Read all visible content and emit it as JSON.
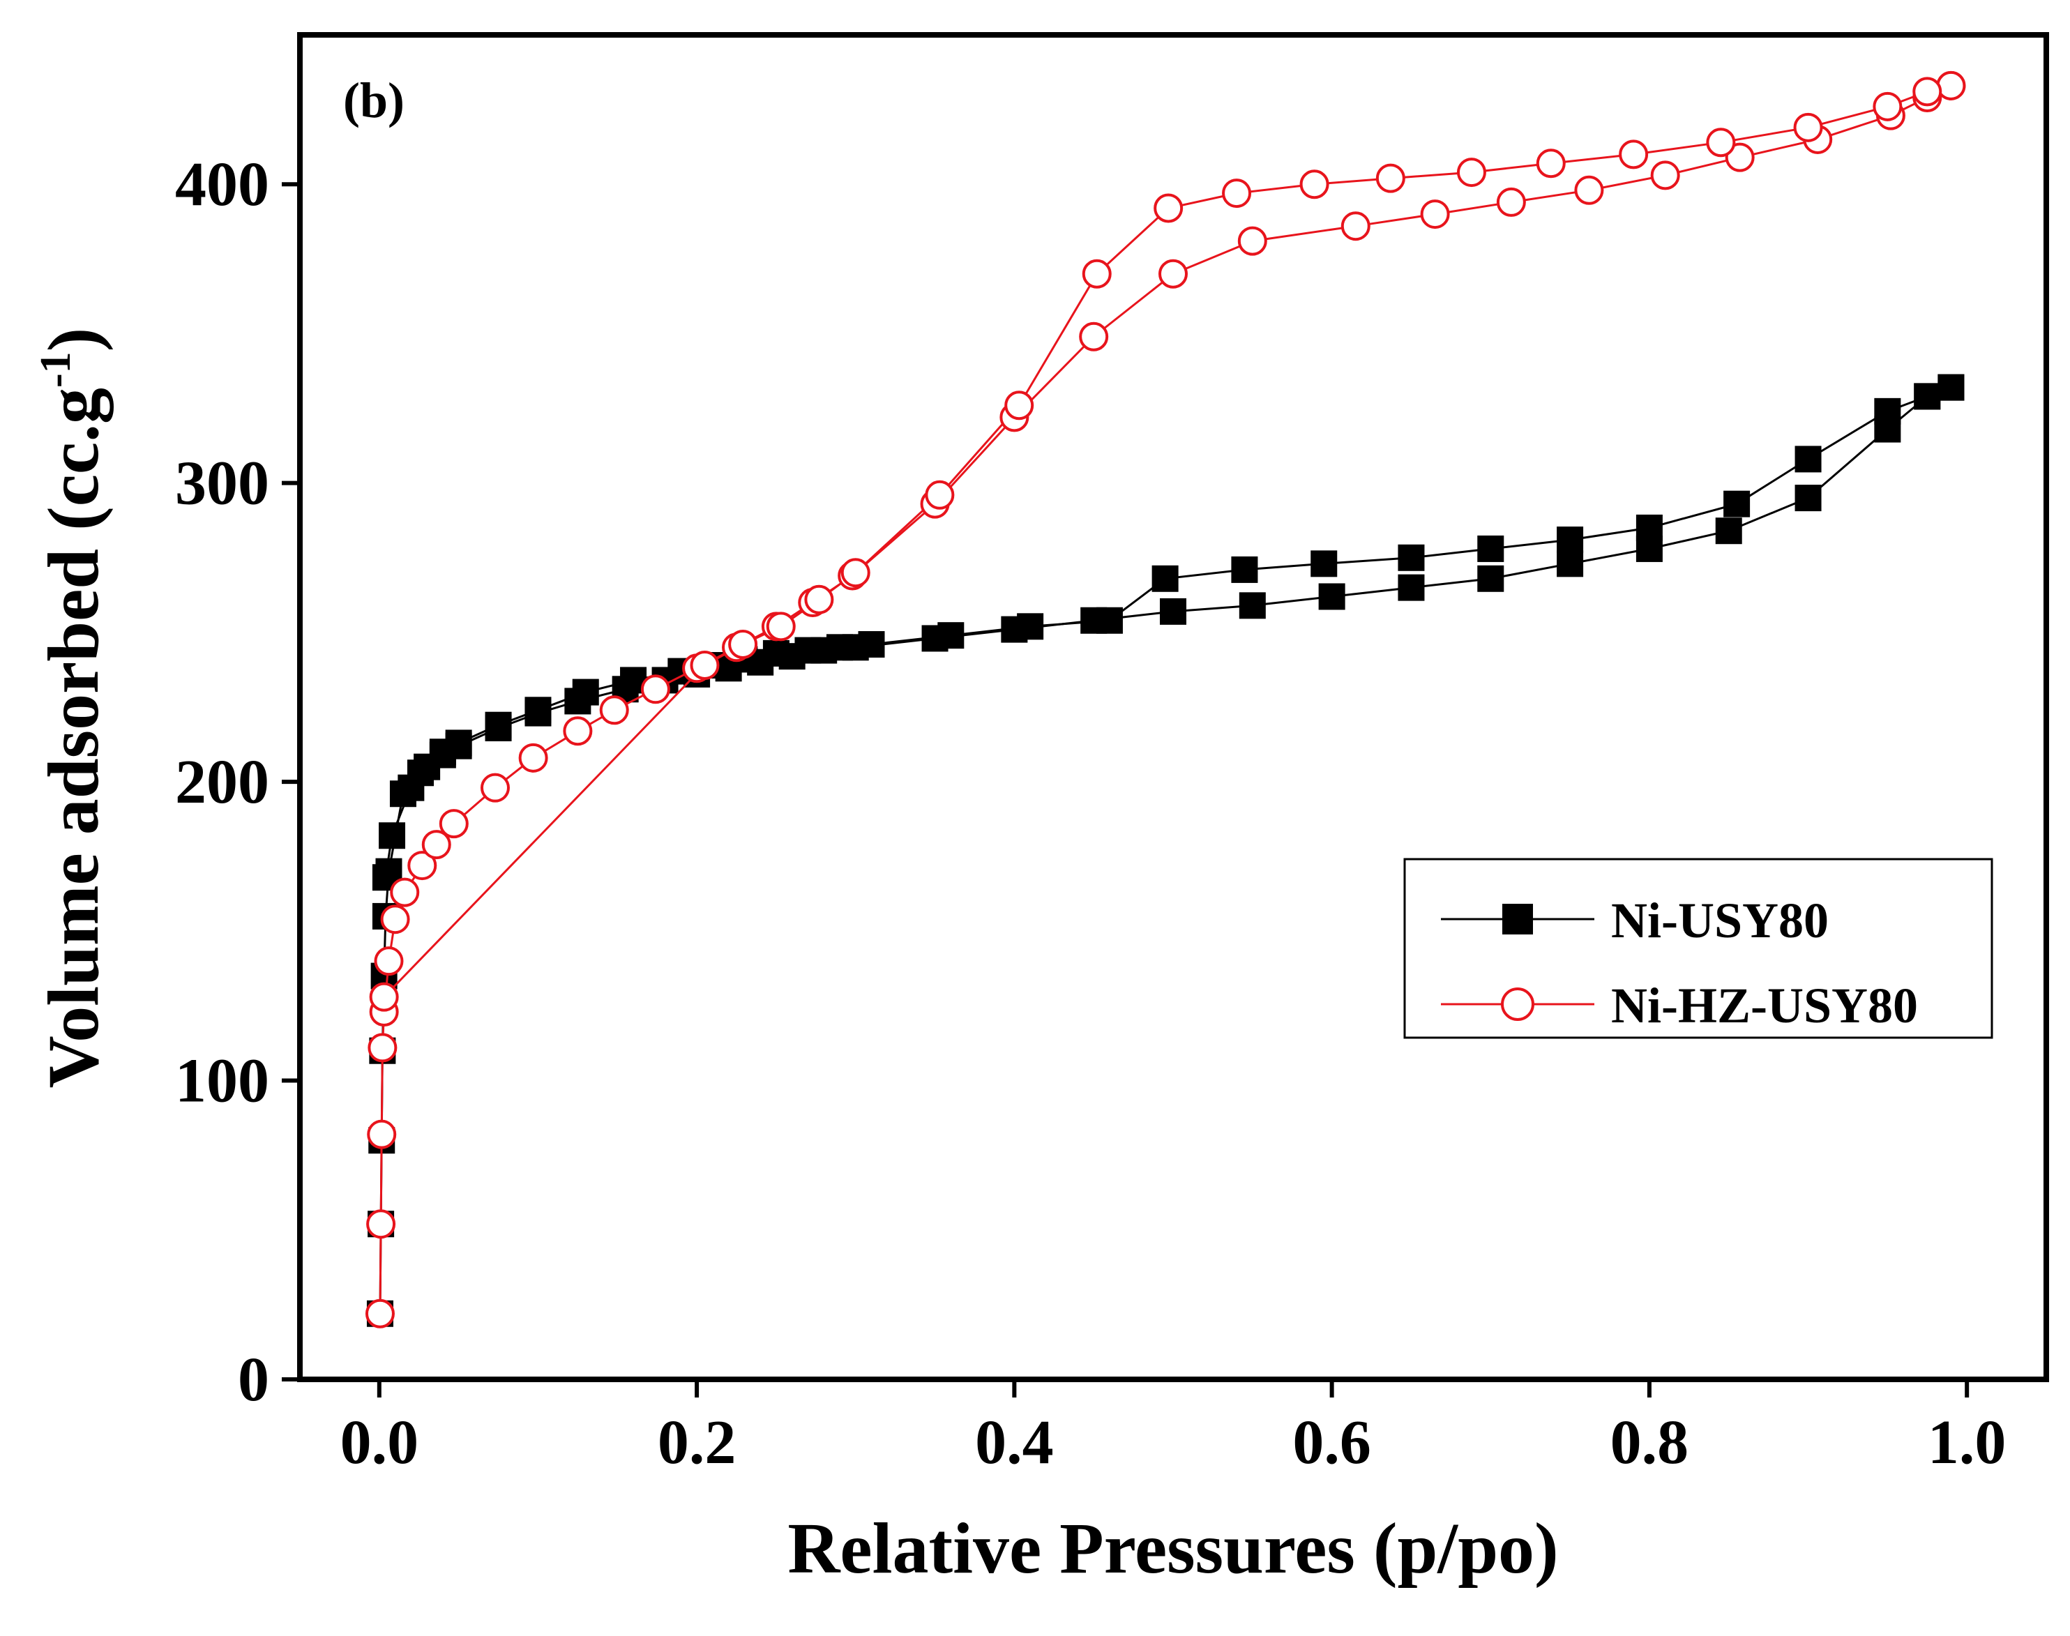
{
  "chart_data": {
    "type": "line",
    "panel_label": "(b)",
    "xlabel": "Relative Pressures (p/po)",
    "ylabel": "Volume adsorbed (cc.g",
    "ylabel_sup": "-1",
    "ylabel_close": ")",
    "xlim": [
      -0.05,
      1.05
    ],
    "ylim": [
      0,
      450
    ],
    "xticks": [
      0.0,
      0.2,
      0.4,
      0.6,
      0.8,
      1.0
    ],
    "xtick_labels": [
      "0.0",
      "0.2",
      "0.4",
      "0.6",
      "0.8",
      "1.0"
    ],
    "yticks": [
      0,
      100,
      200,
      300,
      400
    ],
    "ytick_labels": [
      "0",
      "100",
      "200",
      "300",
      "400"
    ],
    "legend_position": "center-right",
    "series": [
      {
        "name": "Ni-USY80",
        "color": "#000000",
        "marker": "filled-square",
        "adsorption": {
          "x": [
            0.0005,
            0.001,
            0.0015,
            0.002,
            0.003,
            0.004,
            0.006,
            0.015,
            0.026,
            0.04,
            0.05,
            0.075,
            0.1,
            0.125,
            0.155,
            0.18,
            0.2,
            0.22,
            0.24,
            0.26,
            0.28,
            0.3,
            0.35,
            0.4,
            0.45,
            0.5,
            0.55,
            0.6,
            0.65,
            0.7,
            0.75,
            0.8,
            0.85,
            0.9,
            0.95,
            0.975,
            0.99
          ],
          "y": [
            22,
            52,
            80,
            110,
            135,
            155,
            170,
            196,
            203,
            209,
            212,
            218,
            223,
            227,
            231,
            234,
            236,
            238,
            240,
            242,
            244,
            245,
            248,
            251,
            254,
            257,
            259,
            262,
            265,
            268,
            273,
            278,
            284,
            295,
            318,
            329,
            332
          ]
        },
        "desorption": {
          "x": [
            0.99,
            0.975,
            0.95,
            0.9,
            0.855,
            0.8,
            0.75,
            0.7,
            0.65,
            0.595,
            0.545,
            0.495,
            0.46,
            0.41,
            0.36,
            0.31,
            0.29,
            0.27,
            0.25,
            0.23,
            0.21,
            0.19,
            0.16,
            0.13,
            0.1,
            0.075,
            0.05,
            0.04,
            0.03,
            0.02,
            0.008,
            0.004
          ],
          "y": [
            332,
            329,
            324,
            308,
            293,
            285,
            281,
            278,
            275,
            273,
            271,
            268,
            254,
            252,
            249,
            246,
            245,
            244,
            243,
            241,
            239,
            237,
            234,
            230,
            224,
            219,
            213,
            210,
            205,
            198,
            182,
            168
          ]
        }
      },
      {
        "name": "Ni-HZ-USY80",
        "color": "#e8141c",
        "marker": "open-circle",
        "adsorption": {
          "x": [
            0.0005,
            0.001,
            0.0015,
            0.002,
            0.003,
            0.006,
            0.01,
            0.016,
            0.027,
            0.036,
            0.047,
            0.073,
            0.097,
            0.125,
            0.148,
            0.174,
            0.2,
            0.225,
            0.25,
            0.273,
            0.298,
            0.35,
            0.4,
            0.45,
            0.5,
            0.55,
            0.615,
            0.665,
            0.713,
            0.762,
            0.81,
            0.857,
            0.906,
            0.952,
            0.975,
            0.99
          ],
          "y": [
            22,
            52,
            82,
            111,
            123,
            140,
            154,
            163,
            172,
            179,
            186,
            198,
            208,
            217,
            224,
            231,
            238,
            245,
            252,
            260,
            269,
            293,
            322,
            349,
            370,
            381,
            386,
            390,
            394,
            398,
            403,
            409,
            415,
            423,
            429,
            433
          ]
        },
        "desorption": {
          "x": [
            0.99,
            0.975,
            0.95,
            0.9,
            0.845,
            0.79,
            0.738,
            0.688,
            0.637,
            0.589,
            0.54,
            0.497,
            0.452,
            0.403,
            0.353,
            0.3,
            0.277,
            0.253,
            0.229,
            0.205,
            0.003
          ],
          "y": [
            433,
            431,
            426,
            419,
            414,
            410,
            407,
            404,
            402,
            400,
            397,
            392,
            370,
            326,
            296,
            270,
            261,
            252,
            246,
            239,
            128
          ]
        }
      }
    ]
  }
}
